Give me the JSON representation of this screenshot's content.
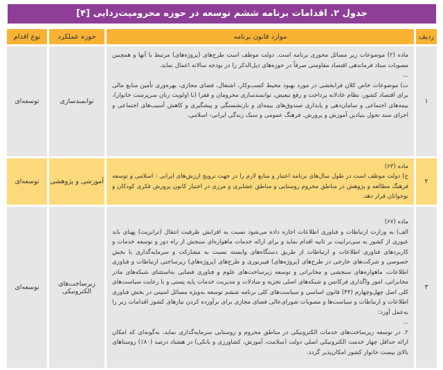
{
  "title": "جدول ۲. اقدامات برنامه ششم توسعه در حوزه محرومیت‌زدایی [۴]",
  "headers": {
    "row": "ردیف",
    "law": "موارد قانون برنامه",
    "domain": "حوزه عملکرد",
    "type": "نوع اقدام"
  },
  "rows": [
    {
      "num": "۱",
      "domain": "توانمندسازی",
      "type": "توسعه‌ای",
      "paragraphs": [
        "ماده (۲) موضوعات زیر مسائل محوری برنامه است. دولت موظف است طرح‌های (پروژه‌های) مرتبط با آنها و همچنین مصوبات ستاد فرماندهی اقتصاد مقاومتی صرفاً در حوزه‌های ذیل‌الذکر را در بودجه سالانه اعمال نماید.",
        "...",
        "ت) موضوعات خاص کلان فرابخشی در مورد بهبود محیط کسب‌وکار، اشتغال، فضای مجازی، بهره‌وری تأمین منابع مالی برای اقتصاد کشور، نظام عادلانه پرداخت و رفع تبعیض، توانمندسازی محرومان و فقرا (با اولویت زنان سرپرست خانوار)، بیمه‌های اجتماعی و سامان‌دهی و پایداری صندوق‌های بیمه‌ای و بازنشستگی و پیشگیری و کاهش آسیب‌های اجتماعی و اجرای سند تحول بنیادین آموزش و پرورش، فرهنگ عمومی و سبک زندگی ایرانی- اسلامی."
      ]
    },
    {
      "num": "۲",
      "domain": "آموزشی و پژوهشی",
      "type": "توسعه‌ای",
      "paragraphs": [
        "ماده (۶۳)",
        "ح) دولت موظف است در طول سال‌های برنامه اعتبار و منابع لازم را در جهت ترویج ارزش‌های ایرانی - اسلامی و توسعه فرهنگ مطالعه و پژوهش در مناطق محروم روستایی و مناطق عشایری و مرزی در اختیار کانون پرورش فکری کودکان و نوجوانان قرار دهد."
      ]
    },
    {
      "num": "۳",
      "domain": "زیرساخت‌های الکترونیکی",
      "type": "توسعه‌ای",
      "paragraphs": [
        "ماده (۶۷)",
        "الف) به وزارت ارتباطات و فناوری اطلاعات اجازه داده می‌شود نسبت به افزایش ظرفیت انتقال (ترانزیت) پهنای باند عبوری از کشور به سی‌ترابیت بر ثانیه اقدام نماید و برای ارائه خدمات ماهواره‌ای سنجش از راه دور و توسعه خدمات و کاربردهای فناوری اطلاعات و ارتباطات از طریق دستگاه‌های وابسته نسبت به مشارکت و سرمایه‌گذاری با بخش خصوصی و شرکت‌های خارجی در طرح‌های (پروژه‌های) فیبرنوری و طرح‌های (پروژه‌های) زیرساختی ارتباطات و فناوری اطلاعات، ماهواره‌های سنجشی و مخابراتی و توسعه زیرساخت‌های علوم و فناوری فضایی به‌استثنای شبکه‌های مادر مخابراتی، امور واگذاری فرکانس و شبکه‌های اصلی تجزیه و مبادلات و مدیریت خدمات پایه پستی و با رعایت سیاست‌های کلی اصل چهل‌وچهارم (۴۴) قانون اساسی و سیاست‌های کلی برنامه ششم توسعه به‌ویژه مسائل امنیتی در بخش فناوری اطلاعات و ارتباطات و سیاست‌ها و مصوبات شورای‌عالی فضای مجازی برای برآورده کردن نیازهای کشور اقدامات زیر را به‌عمل آورد:",
        "...",
        "۲. در توسعه زیرساخت‌های خدمات الکترونیکی در مناطق محروم و روستایی سرمایه‌گذاری نماید، به‌گونه‌ای که امکان ارائه حداقل چهار خدمت الکترونیکی اصلی دولت (سلامت، آموزش، کشاورزی و بانکی) در هشتاد درصد (۸۰٪) روستاهای بالای بیست خانوار کشور امکان‌پذیر گردد."
      ]
    }
  ]
}
